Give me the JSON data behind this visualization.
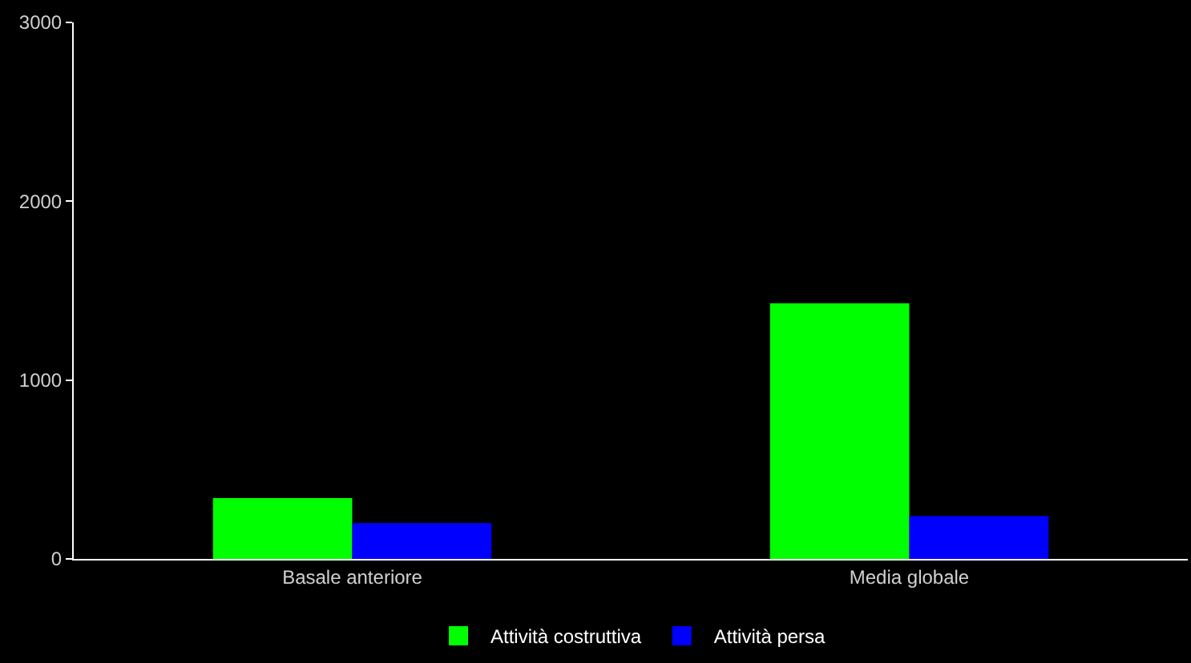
{
  "chart_data": {
    "type": "bar",
    "categories": [
      "Basale anteriore",
      "Media globale"
    ],
    "series": [
      {
        "name": "Attività costruttiva",
        "color": "#00ff00",
        "values": [
          340,
          1430
        ]
      },
      {
        "name": "Attività persa",
        "color": "#0000ff",
        "values": [
          200,
          240
        ]
      }
    ],
    "ylim": [
      0,
      3000
    ],
    "yticks": [
      0,
      1000,
      2000,
      3000
    ],
    "grid": false,
    "legend": "bottom"
  }
}
